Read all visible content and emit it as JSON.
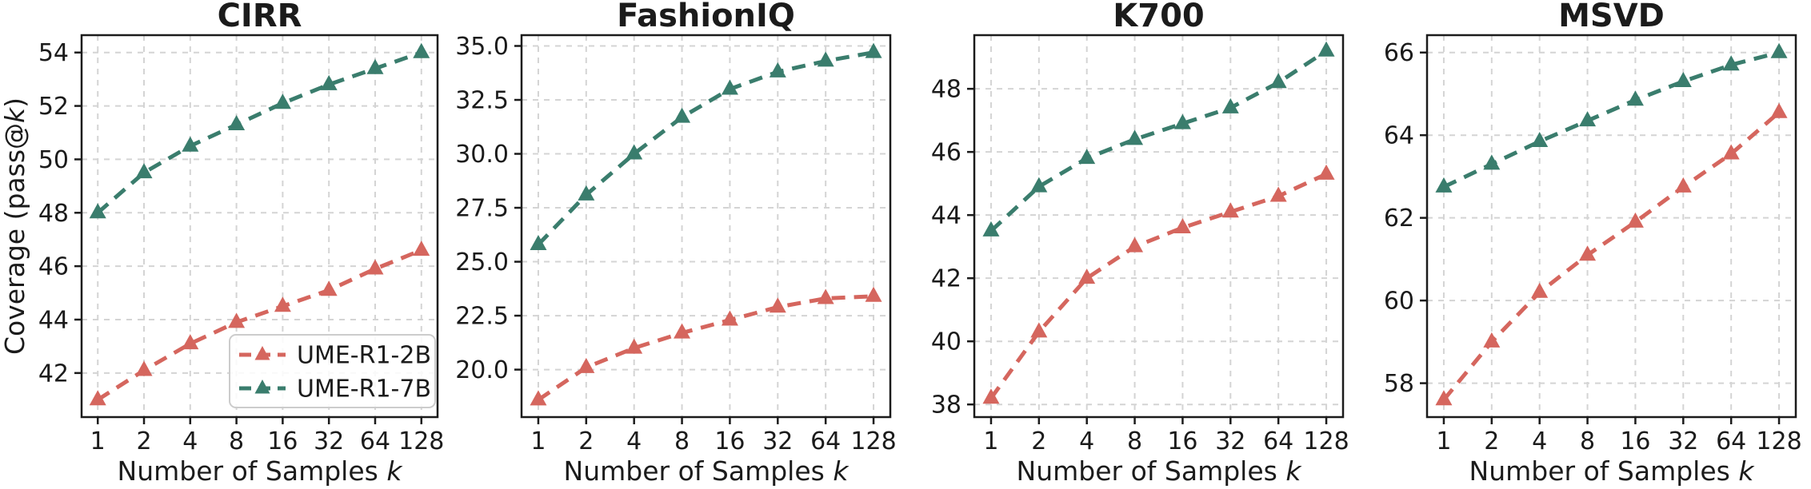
{
  "figure": {
    "ylabel_prefix": "Coverage (pass@",
    "ylabel_italic": "k",
    "ylabel_suffix": ")",
    "xlabel_prefix": "Number of Samples ",
    "xlabel_italic": "k"
  },
  "colors": {
    "series_2b": "#d5665e",
    "series_7b": "#3a7d6d",
    "grid": "#d4d4d4",
    "axis": "#1b1b1b",
    "legend_border": "#cccccc",
    "background": "#ffffff"
  },
  "legend": {
    "location": "lower right of first panel",
    "entries": [
      {
        "label": "UME-R1-2B",
        "color": "#d5665e"
      },
      {
        "label": "UME-R1-7B",
        "color": "#3a7d6d"
      }
    ]
  },
  "chart_data": [
    {
      "type": "line",
      "title": "CIRR",
      "xlabel": "Number of Samples k",
      "ylabel": "Coverage (pass@k)",
      "x_scale": "log2",
      "x": [
        1,
        2,
        4,
        8,
        16,
        32,
        64,
        128
      ],
      "xtick_labels": [
        "1",
        "2",
        "4",
        "8",
        "16",
        "32",
        "64",
        "128"
      ],
      "xlim_log2": [
        -0.35,
        7.35
      ],
      "ytick_labels": [
        "42",
        "44",
        "46",
        "48",
        "50",
        "52",
        "54"
      ],
      "ylim": [
        40.35,
        54.65
      ],
      "grid": true,
      "legend": true,
      "series": [
        {
          "name": "UME-R1-2B",
          "color": "#d5665e",
          "marker": "triangle-up",
          "linestyle": "dashed",
          "values": [
            41.0,
            42.1,
            43.1,
            43.9,
            44.5,
            45.1,
            45.9,
            46.6
          ]
        },
        {
          "name": "UME-R1-7B",
          "color": "#3a7d6d",
          "marker": "triangle-up",
          "linestyle": "dashed",
          "values": [
            48.0,
            49.5,
            50.5,
            51.3,
            52.1,
            52.8,
            53.4,
            54.0
          ]
        }
      ]
    },
    {
      "type": "line",
      "title": "FashionIQ",
      "xlabel": "Number of Samples k",
      "ylabel": "Coverage (pass@k)",
      "x_scale": "log2",
      "x": [
        1,
        2,
        4,
        8,
        16,
        32,
        64,
        128
      ],
      "xtick_labels": [
        "1",
        "2",
        "4",
        "8",
        "16",
        "32",
        "64",
        "128"
      ],
      "xlim_log2": [
        -0.35,
        7.35
      ],
      "ytick_labels": [
        "20.0",
        "22.5",
        "25.0",
        "27.5",
        "30.0",
        "32.5",
        "35.0"
      ],
      "ylim": [
        17.8,
        35.5
      ],
      "grid": true,
      "legend": false,
      "series": [
        {
          "name": "UME-R1-2B",
          "color": "#d5665e",
          "marker": "triangle-up",
          "linestyle": "dashed",
          "values": [
            18.6,
            20.1,
            21.0,
            21.7,
            22.3,
            22.9,
            23.3,
            23.4
          ]
        },
        {
          "name": "UME-R1-7B",
          "color": "#3a7d6d",
          "marker": "triangle-up",
          "linestyle": "dashed",
          "values": [
            25.8,
            28.1,
            30.0,
            31.7,
            33.0,
            33.8,
            34.3,
            34.7
          ]
        }
      ]
    },
    {
      "type": "line",
      "title": "K700",
      "xlabel": "Number of Samples k",
      "ylabel": "Coverage (pass@k)",
      "x_scale": "log2",
      "x": [
        1,
        2,
        4,
        8,
        16,
        32,
        64,
        128
      ],
      "xtick_labels": [
        "1",
        "2",
        "4",
        "8",
        "16",
        "32",
        "64",
        "128"
      ],
      "xlim_log2": [
        -0.35,
        7.35
      ],
      "ytick_labels": [
        "38",
        "40",
        "42",
        "44",
        "46",
        "48"
      ],
      "ylim": [
        37.6,
        49.7
      ],
      "grid": true,
      "legend": false,
      "series": [
        {
          "name": "UME-R1-2B",
          "color": "#d5665e",
          "marker": "triangle-up",
          "linestyle": "dashed",
          "values": [
            38.2,
            40.3,
            42.0,
            43.0,
            43.6,
            44.1,
            44.6,
            45.3
          ]
        },
        {
          "name": "UME-R1-7B",
          "color": "#3a7d6d",
          "marker": "triangle-up",
          "linestyle": "dashed",
          "values": [
            43.5,
            44.9,
            45.8,
            46.4,
            46.9,
            47.4,
            48.2,
            49.2
          ]
        }
      ]
    },
    {
      "type": "line",
      "title": "MSVD",
      "xlabel": "Number of Samples k",
      "ylabel": "Coverage (pass@k)",
      "x_scale": "log2",
      "x": [
        1,
        2,
        4,
        8,
        16,
        32,
        64,
        128
      ],
      "xtick_labels": [
        "1",
        "2",
        "4",
        "8",
        "16",
        "32",
        "64",
        "128"
      ],
      "xlim_log2": [
        -0.35,
        7.35
      ],
      "ytick_labels": [
        "58",
        "60",
        "62",
        "64",
        "66"
      ],
      "ylim": [
        57.18,
        66.42
      ],
      "grid": true,
      "legend": false,
      "series": [
        {
          "name": "UME-R1-2B",
          "color": "#d5665e",
          "marker": "triangle-up",
          "linestyle": "dashed",
          "values": [
            57.6,
            59.0,
            60.2,
            61.1,
            61.9,
            62.75,
            63.55,
            64.55
          ]
        },
        {
          "name": "UME-R1-7B",
          "color": "#3a7d6d",
          "marker": "triangle-up",
          "linestyle": "dashed",
          "values": [
            62.75,
            63.3,
            63.85,
            64.35,
            64.85,
            65.3,
            65.7,
            66.0
          ]
        }
      ]
    }
  ]
}
